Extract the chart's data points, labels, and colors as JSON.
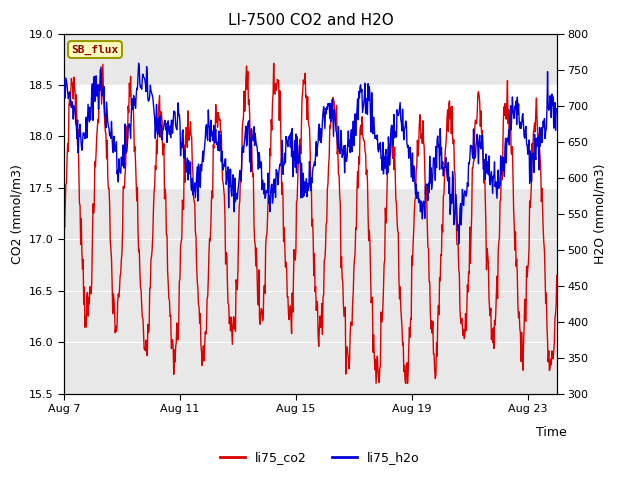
{
  "title": "LI-7500 CO2 and H2O",
  "xlabel": "Time",
  "ylabel_left": "CO2 (mmol/m3)",
  "ylabel_right": "H2O (mmol/m3)",
  "co2_ylim": [
    15.5,
    19.0
  ],
  "h2o_ylim": [
    300,
    800
  ],
  "co2_yticks": [
    15.5,
    16.0,
    16.5,
    17.0,
    17.5,
    18.0,
    18.5,
    19.0
  ],
  "h2o_yticks": [
    300,
    350,
    400,
    450,
    500,
    550,
    600,
    650,
    700,
    750,
    800
  ],
  "xtick_labels": [
    "Aug 7",
    "Aug 11",
    "Aug 15",
    "Aug 19",
    "Aug 23"
  ],
  "xtick_positions": [
    0,
    4,
    8,
    12,
    16
  ],
  "shaded_band_co2": [
    17.5,
    18.5
  ],
  "annotation_text": "SB_flux",
  "annotation_bg": "#FFFFC0",
  "annotation_border": "#999900",
  "line_co2_color": "#DD0000",
  "line_h2o_color": "#0000DD",
  "legend_co2": "li75_co2",
  "legend_h2o": "li75_h2o",
  "plot_bg_color": "#E8E8E8",
  "white_band_color": "#FFFFFF",
  "background_color": "#ffffff",
  "grid_color": "#ffffff"
}
